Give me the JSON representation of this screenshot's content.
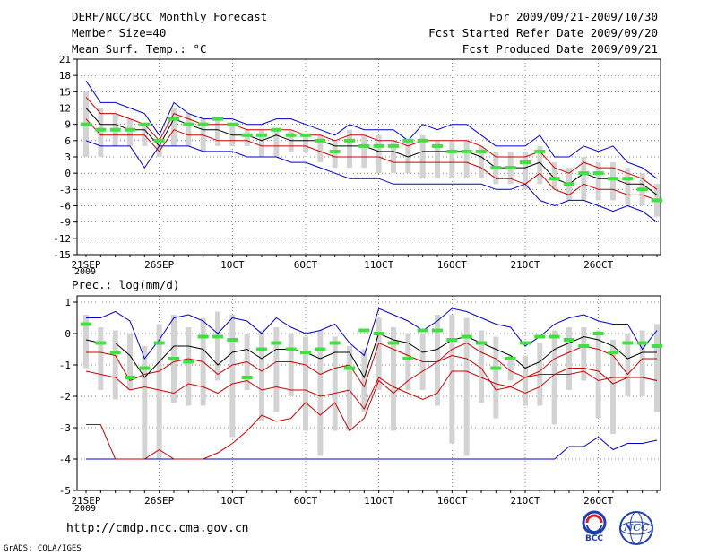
{
  "header": {
    "title": "DERF/NCC/BCC Monthly Forecast",
    "member_size": "Member Size=40",
    "variable": "Mean Surf. Temp.: °C",
    "period": "For 2009/09/21-2009/10/30",
    "start_ref": "Fcst Started Refer Date 2009/09/20",
    "produced": "Fcst Produced Date 2009/09/21"
  },
  "footer": {
    "url": "http://cmdp.ncc.cma.gov.cn",
    "grads": "GrADS: COLA/IGES",
    "logo_left": "BCC",
    "logo_right": "NCC"
  },
  "colors": {
    "mean": "#000000",
    "band": "#cc0000",
    "envelope": "#0000cc",
    "boxes": "#d3d3d3",
    "markers": "#40e040",
    "grid": "#000000"
  },
  "chart_data": [
    {
      "type": "line",
      "title": "Mean Surf. Temp.: °C",
      "year_label": "2009",
      "x_tick_labels": [
        "21SEP",
        "26SEP",
        "1OCT",
        "6OCT",
        "11OCT",
        "16OCT",
        "21OCT",
        "26OCT"
      ],
      "y_ticks": [
        21,
        18,
        15,
        12,
        9,
        6,
        3,
        0,
        -3,
        -6,
        -9,
        -12,
        -15
      ],
      "ylim": [
        -15,
        21
      ],
      "days": 40,
      "series": [
        {
          "name": "max",
          "values": [
            17,
            13,
            13,
            12,
            11,
            7,
            13,
            11,
            10,
            10,
            10,
            9,
            9,
            10,
            10,
            9,
            8,
            7,
            9,
            8,
            8,
            8,
            6,
            9,
            8,
            9,
            9,
            7,
            5,
            5,
            5,
            7,
            3,
            3,
            5,
            4,
            5,
            2,
            1,
            -1
          ]
        },
        {
          "name": "upper",
          "values": [
            14,
            11,
            11,
            10,
            9,
            6,
            11,
            10,
            9,
            9,
            9,
            8,
            8,
            8,
            8,
            7,
            7,
            6,
            7,
            7,
            6,
            6,
            5,
            6,
            6,
            6,
            6,
            5,
            3,
            3,
            3,
            4,
            1,
            0,
            2,
            1,
            1,
            0,
            -1,
            -3
          ]
        },
        {
          "name": "mean",
          "values": [
            12,
            9,
            9,
            8,
            8,
            5,
            10,
            9,
            8,
            8,
            7,
            7,
            6,
            7,
            6,
            6,
            6,
            5,
            5,
            5,
            4,
            4,
            3,
            4,
            4,
            4,
            4,
            3,
            1,
            1,
            1,
            2,
            -1,
            -2,
            0,
            -1,
            -1,
            -2,
            -2,
            -4
          ]
        },
        {
          "name": "lower",
          "values": [
            10,
            7,
            7,
            7,
            7,
            4,
            8,
            7,
            7,
            6,
            6,
            6,
            5,
            5,
            5,
            5,
            4,
            3,
            3,
            3,
            3,
            2,
            2,
            2,
            2,
            2,
            2,
            1,
            -1,
            -1,
            -2,
            0,
            -3,
            -4,
            -2,
            -3,
            -3,
            -4,
            -4,
            -5
          ]
        },
        {
          "name": "min",
          "values": [
            6,
            5,
            5,
            5,
            1,
            5,
            5,
            5,
            4,
            4,
            4,
            3,
            3,
            3,
            2,
            2,
            1,
            0,
            -1,
            -1,
            -1,
            -2,
            -2,
            -2,
            -2,
            -2,
            -2,
            -2,
            -3,
            -3,
            -2,
            -5,
            -6,
            -5,
            -5,
            -6,
            -7,
            -6,
            -7,
            -9
          ]
        },
        {
          "name": "box_top",
          "values": [
            15,
            12,
            11,
            10,
            9,
            6,
            12,
            11,
            10,
            10,
            9,
            8,
            8,
            8,
            8,
            7,
            7,
            6,
            8,
            7,
            7,
            6,
            6,
            7,
            6,
            6,
            6,
            5,
            4,
            4,
            4,
            5,
            2,
            1,
            3,
            2,
            2,
            1,
            0,
            -2
          ]
        },
        {
          "name": "box_bottom",
          "values": [
            3,
            3,
            5,
            5,
            5,
            3,
            5,
            5,
            4,
            5,
            5,
            5,
            3,
            3,
            4,
            4,
            2,
            1,
            1,
            1,
            0,
            0,
            0,
            -1,
            -1,
            -1,
            -1,
            -1,
            -2,
            -2,
            -3,
            -2,
            -3,
            -5,
            -5,
            -5,
            -5,
            -6,
            -6,
            -8
          ]
        },
        {
          "name": "marker",
          "values": [
            9,
            8,
            8,
            8,
            9,
            6,
            10,
            9,
            9,
            10,
            9,
            7,
            7,
            8,
            7,
            7,
            6,
            4,
            6,
            5,
            5,
            5,
            6,
            6,
            5,
            4,
            4,
            4,
            1,
            1,
            2,
            4,
            -1,
            -2,
            0,
            0,
            -1,
            -1,
            -3,
            -5
          ]
        }
      ]
    },
    {
      "type": "line",
      "title": "Prec.: log(mm/d)",
      "year_label": "2009",
      "x_tick_labels": [
        "21SEP",
        "26SEP",
        "1OCT",
        "6OCT",
        "11OCT",
        "16OCT",
        "21OCT",
        "26OCT"
      ],
      "y_ticks": [
        1,
        0,
        -1,
        -2,
        -3,
        -4,
        -5
      ],
      "ylim": [
        -5,
        1.2
      ],
      "days": 40,
      "series": [
        {
          "name": "max",
          "values": [
            0.5,
            0.5,
            0.7,
            0.4,
            -0.8,
            -0.2,
            0.5,
            0.6,
            0.4,
            0,
            0.5,
            0.4,
            0,
            0.5,
            0.2,
            0,
            0.1,
            0.3,
            -0.3,
            -0.7,
            0.8,
            0.6,
            0.4,
            0.1,
            0.4,
            0.8,
            0.7,
            0.5,
            0.3,
            0.2,
            -0.4,
            -0.1,
            0.3,
            0.5,
            0.6,
            0.4,
            0.3,
            0.3,
            -0.5,
            0.1
          ]
        },
        {
          "name": "mean",
          "values": [
            -0.2,
            -0.3,
            -0.3,
            -0.7,
            -1.4,
            -0.9,
            -0.4,
            -0.4,
            -0.5,
            -1,
            -0.6,
            -0.5,
            -0.8,
            -0.5,
            -0.5,
            -0.6,
            -0.8,
            -0.6,
            -0.6,
            -1.4,
            0,
            -0.2,
            -0.3,
            -0.6,
            -0.5,
            -0.2,
            -0.1,
            -0.3,
            -0.5,
            -0.7,
            -1.1,
            -0.9,
            -0.5,
            -0.3,
            -0.1,
            -0.2,
            -0.4,
            -0.8,
            -0.6,
            -0.6
          ]
        },
        {
          "name": "upper",
          "values": [
            -0.6,
            -0.6,
            -0.7,
            -1.5,
            -1.3,
            -1.2,
            -0.9,
            -0.8,
            -0.9,
            -1.3,
            -1,
            -0.9,
            -1.2,
            -0.9,
            -0.9,
            -1,
            -1.3,
            -1.1,
            -1,
            -1.7,
            -0.3,
            -0.5,
            -0.7,
            -0.9,
            -0.9,
            -0.5,
            -0.3,
            -0.6,
            -0.8,
            -1.2,
            -1.4,
            -1.2,
            -0.8,
            -0.6,
            -0.4,
            -0.5,
            -0.7,
            -1.3,
            -0.8,
            -0.8
          ]
        },
        {
          "name": "lower",
          "values": [
            -1.2,
            -1.3,
            -1.4,
            -1.8,
            -1.7,
            -1.8,
            -1.9,
            -1.6,
            -1.7,
            -1.9,
            -1.6,
            -1.5,
            -1.8,
            -1.7,
            -1.8,
            -1.8,
            -2,
            -1.9,
            -1.8,
            -2.4,
            -1.4,
            -1.7,
            -1.9,
            -2.1,
            -1.9,
            -1.2,
            -1.2,
            -1.4,
            -1.6,
            -1.7,
            -1.9,
            -1.7,
            -1.3,
            -1.1,
            -1.1,
            -1.2,
            -1.6,
            -1.4,
            -1.4,
            -1.5
          ]
        },
        {
          "name": "lowest",
          "values": [
            -2.9,
            -2.9,
            -4,
            -4,
            -4,
            -3.7,
            -4,
            -4,
            -4,
            -3.8,
            -3.5,
            -3.1,
            -2.6,
            -2.8,
            -2.7,
            -2.2,
            -2.6,
            -2.2,
            -3.1,
            -2.7,
            -1.5,
            -1.9,
            -1.5,
            -1.2,
            -0.9,
            -0.7,
            -0.8,
            -1.1,
            -1.8,
            -1.7,
            -1.4,
            -1.3,
            -1.3,
            -1.3,
            -1.2,
            -1.5,
            -1.4,
            -1.4,
            -1.4,
            -1.5
          ]
        },
        {
          "name": "min",
          "values": [
            -4,
            -4,
            -4,
            -4,
            -4,
            -4,
            -4,
            -4,
            -4,
            -4,
            -4,
            -4,
            -4,
            -4,
            -4,
            -4,
            -4,
            -4,
            -4,
            -4,
            -4,
            -4,
            -4,
            -4,
            -4,
            -4,
            -4,
            -4,
            -4,
            -4,
            -4,
            -4,
            -4,
            -3.6,
            -3.6,
            -3.3,
            -3.7,
            -3.5,
            -3.5,
            -3.4
          ]
        },
        {
          "name": "box_top",
          "values": [
            0.6,
            0.2,
            0.1,
            0,
            -0.4,
            0.3,
            0.6,
            0.2,
            0.5,
            0.7,
            0.6,
            0,
            0.1,
            0.2,
            0,
            -0.1,
            0.1,
            -0.1,
            -0.4,
            -0.5,
            0.5,
            0.2,
            0,
            0,
            0.6,
            0.6,
            0.5,
            0.1,
            -0.1,
            -0.7,
            -0.7,
            -0.3,
            0.1,
            0.2,
            0.2,
            0.1,
            -0.2,
            0,
            0.1,
            0.3
          ]
        },
        {
          "name": "box_bottom",
          "values": [
            -1.1,
            -1.8,
            -2.1,
            -1.8,
            -4,
            -4,
            -2.2,
            -2.3,
            -2.3,
            -1.5,
            -3.3,
            -1.8,
            -2.8,
            -2.5,
            -2,
            -3.1,
            -3.9,
            -3.1,
            -3.1,
            -2.5,
            -1.8,
            -3.1,
            -1.8,
            -1.8,
            -2.3,
            -3.5,
            -3.9,
            -2.2,
            -2.7,
            -1.5,
            -2.3,
            -2.3,
            -2.9,
            -1.8,
            -1.5,
            -2.7,
            -3.2,
            -2,
            -2,
            -2.5
          ]
        },
        {
          "name": "marker",
          "values": [
            0.3,
            -0.3,
            -0.6,
            -1.4,
            -1.1,
            -0.3,
            -0.8,
            -0.9,
            -0.1,
            -0.1,
            -0.2,
            -1.4,
            -0.5,
            -0.3,
            -0.5,
            -0.6,
            -0.5,
            -0.3,
            -1.1,
            0.1,
            0,
            -0.3,
            -0.8,
            0.1,
            0.1,
            -0.2,
            -0.1,
            -0.3,
            -1.1,
            -0.8,
            -0.3,
            -0.1,
            -0.1,
            -0.2,
            -0.4,
            0,
            -0.6,
            -0.3,
            -0.3,
            -0.4
          ]
        }
      ]
    }
  ]
}
